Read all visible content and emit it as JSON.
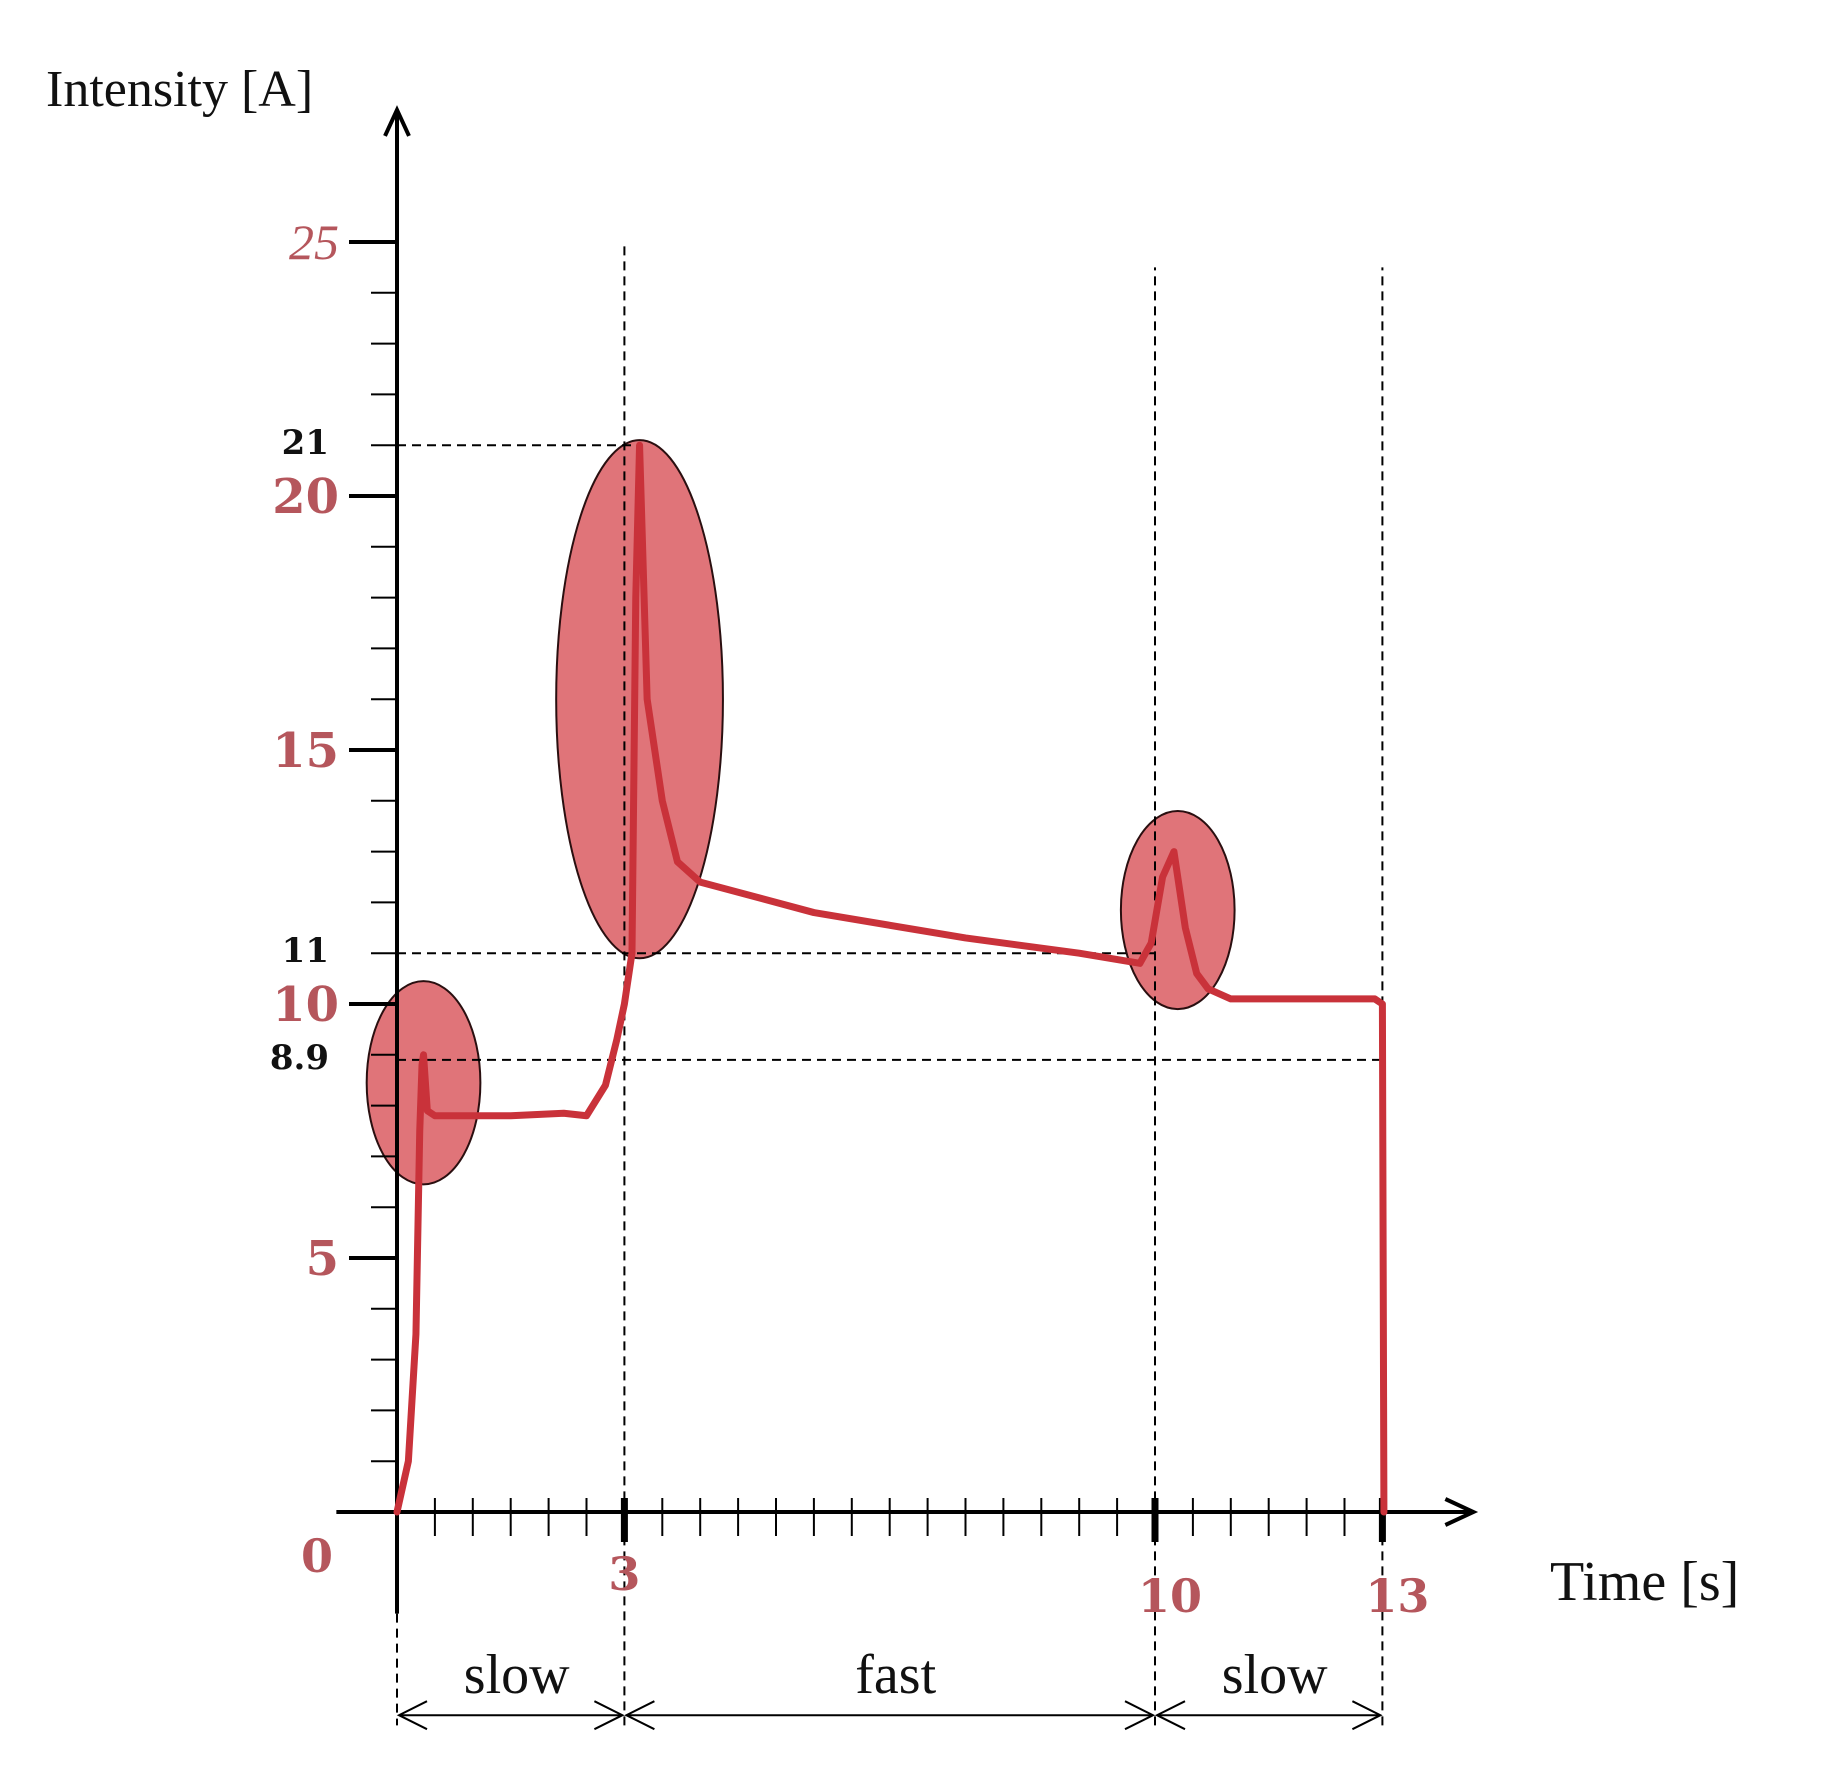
{
  "colors": {
    "curve": "#c9323a",
    "highlight_fill": "#d9555c",
    "tick_label": "#b5565c",
    "axis": "#000000"
  },
  "chart_data": {
    "type": "line",
    "xlabel": "Time [s]",
    "ylabel": "Intensity [A]",
    "xlim": [
      0,
      14.2
    ],
    "ylim": [
      0,
      27.6
    ],
    "grid": false,
    "x_tick_labels": [
      {
        "value": 0,
        "text": "0"
      },
      {
        "value": 3,
        "text": "3"
      },
      {
        "value": 10,
        "text": "10"
      },
      {
        "value": 13,
        "text": "13"
      }
    ],
    "y_tick_labels": [
      {
        "value": 5,
        "text": "5"
      },
      {
        "value": 10,
        "text": "10"
      },
      {
        "value": 15,
        "text": "15"
      },
      {
        "value": 20,
        "text": "20"
      },
      {
        "value": 25,
        "text": "25"
      }
    ],
    "y_reference_labels": [
      {
        "value": 8.9,
        "text": "8.9"
      },
      {
        "value": 11,
        "text": "11"
      },
      {
        "value": 21,
        "text": "21"
      }
    ],
    "series": [
      {
        "x": [
          0,
          0.15,
          0.25,
          0.3,
          0.33,
          0.35,
          0.4,
          0.5,
          0.8,
          1.5,
          2.2,
          2.5,
          2.75,
          2.9,
          3.0,
          3.1,
          3.15,
          3.2,
          3.3,
          3.5,
          3.7,
          4.0,
          5.5,
          7.5,
          9.0,
          9.8,
          9.95,
          10.1,
          10.25,
          10.4,
          10.55,
          10.7,
          11.0,
          11.5,
          12.0,
          12.5,
          12.9,
          13.0,
          13.02
        ],
        "y": [
          0,
          1,
          3.5,
          7.5,
          8.8,
          9.0,
          7.9,
          7.8,
          7.8,
          7.8,
          7.85,
          7.8,
          8.4,
          9.3,
          10.0,
          11.0,
          18.0,
          21.0,
          16.0,
          14.0,
          12.8,
          12.4,
          11.8,
          11.3,
          11.0,
          10.8,
          11.2,
          12.5,
          13.0,
          11.5,
          10.6,
          10.3,
          10.1,
          10.1,
          10.1,
          10.1,
          10.1,
          10.0,
          0
        ]
      }
    ],
    "highlights": [
      {
        "cx": 0.35,
        "cy": 8.45,
        "rx": 0.75,
        "ry": 2.0
      },
      {
        "cx": 3.2,
        "cy": 16.0,
        "rx": 1.1,
        "ry": 5.1
      },
      {
        "cx": 10.3,
        "cy": 11.85,
        "rx": 0.75,
        "ry": 1.95
      }
    ],
    "annotations": {
      "reference_lines": [
        {
          "x1": 0,
          "x2": 3.2,
          "y": 21
        },
        {
          "x1": 0,
          "x2": 10,
          "y": 11
        },
        {
          "x1": 0,
          "x2": 13,
          "y": 8.9
        }
      ],
      "vertical_lines": [
        {
          "x": 3,
          "from": -4.2,
          "to": 25
        },
        {
          "x": 10,
          "from": -4.2,
          "to": 24.5
        },
        {
          "x": 13,
          "from": -4.2,
          "to": 24.5
        }
      ],
      "phases": [
        {
          "from": 0,
          "to": 3,
          "text": "slow"
        },
        {
          "from": 3,
          "to": 10,
          "text": "fast"
        },
        {
          "from": 10,
          "to": 13,
          "text": "slow"
        }
      ]
    }
  }
}
